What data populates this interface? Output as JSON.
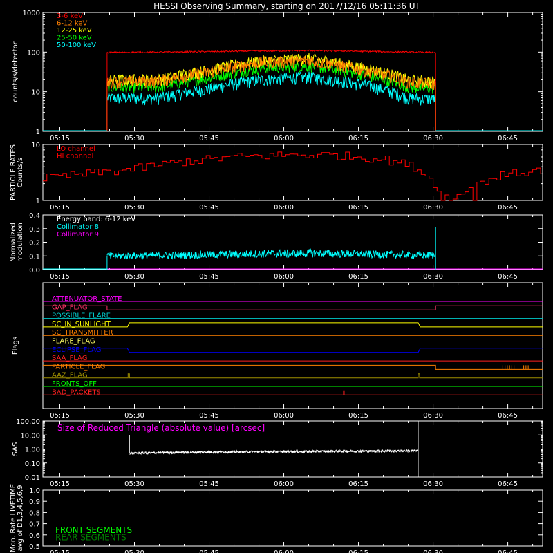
{
  "title": "HESSI Observing Summary, starting on 2017/12/16 05:11:36 UT",
  "colors": {
    "background": "#000000",
    "white": "#ffffff",
    "red": "#ff0000",
    "orange": "#ff7f00",
    "yellow": "#ffff00",
    "green": "#00ff00",
    "cyan": "#00ffff",
    "magenta": "#ff00ff",
    "blue": "#0000ff",
    "darkgreen": "#228b22",
    "olive": "#a09000",
    "salmon": "#ff4040"
  },
  "time_axis": {
    "tick_labels": [
      "05:15",
      "05:30",
      "05:45",
      "06:00",
      "06:15",
      "06:30",
      "06:45"
    ],
    "start": "05:11:36",
    "end": "06:52"
  },
  "chart_data": [
    {
      "id": "count-rates",
      "type": "line",
      "ylabel": "counts/s/detector",
      "y_scale": "log",
      "ylim": [
        1,
        1000
      ],
      "y_tick_labels": [
        "1",
        "10",
        "100",
        "1000"
      ],
      "x_range": [
        "05:24:30",
        "06:30:30"
      ],
      "series": [
        {
          "name": "3-6 keV",
          "color": "#ff0000",
          "x": [
            "05:24:30",
            "05:35",
            "05:45",
            "05:55",
            "06:05",
            "06:15",
            "06:25",
            "06:30:30"
          ],
          "values": [
            98,
            100,
            103,
            107,
            109,
            105,
            100,
            98
          ]
        },
        {
          "name": "6-12 keV",
          "color": "#ff8000",
          "x": [
            "05:24:30",
            "05:35",
            "05:45",
            "05:55",
            "06:05",
            "06:15",
            "06:25",
            "06:30:30"
          ],
          "values": [
            18,
            19,
            32,
            55,
            62,
            38,
            18,
            16
          ]
        },
        {
          "name": "12-25 keV",
          "color": "#ffff00",
          "x": [
            "05:24:30",
            "05:35",
            "05:45",
            "05:55",
            "06:05",
            "06:15",
            "06:25",
            "06:30:30"
          ],
          "values": [
            20,
            21,
            35,
            60,
            70,
            42,
            20,
            18
          ]
        },
        {
          "name": "25-50 keV",
          "color": "#00ff00",
          "x": [
            "05:24:30",
            "05:35",
            "05:45",
            "05:55",
            "06:05",
            "06:15",
            "06:25",
            "06:30:30"
          ],
          "values": [
            13,
            13,
            22,
            38,
            45,
            28,
            13,
            12
          ]
        },
        {
          "name": "50-100 keV",
          "color": "#00ffff",
          "x": [
            "05:24:30",
            "05:35",
            "05:45",
            "05:55",
            "06:05",
            "06:15",
            "06:25",
            "06:30:30"
          ],
          "values": [
            7,
            7,
            12,
            20,
            24,
            16,
            7,
            6.5
          ]
        }
      ]
    },
    {
      "id": "particle-rates",
      "type": "line",
      "ylabel": [
        "PARTICLE RATES",
        "Counts/s"
      ],
      "y_scale": "log",
      "ylim": [
        1,
        10
      ],
      "y_tick_labels": [
        "1",
        "10"
      ],
      "series": [
        {
          "name": "LO channel",
          "color": "#ff0000",
          "x": [
            "05:11:36"
          ],
          "values": [
            3
          ]
        },
        {
          "name": "HI channel",
          "color": "#ff0000",
          "x": [
            "05:11:36",
            "05:20",
            "05:28",
            "05:40",
            "05:50",
            "06:00",
            "06:10",
            "06:20",
            "06:26",
            "06:30",
            "06:33",
            "06:38",
            "06:45",
            "06:52"
          ],
          "values": [
            2.5,
            3,
            3.5,
            5,
            6,
            6.5,
            6.5,
            5.5,
            4,
            2,
            1,
            2,
            3,
            3.5
          ]
        }
      ]
    },
    {
      "id": "modulation",
      "type": "line",
      "ylabel": [
        "Normalized",
        "modulation"
      ],
      "ylim": [
        0,
        0.4
      ],
      "y_tick_labels": [
        "0.0",
        "0.1",
        "0.2",
        "0.3",
        "0.4"
      ],
      "annotation": "Energy band: 6-12 keV",
      "series": [
        {
          "name": "Collimator 8",
          "color": "#00ffff",
          "x": [
            "05:24:30",
            "05:40",
            "05:55",
            "06:05",
            "06:20",
            "06:30:30"
          ],
          "values": [
            0.1,
            0.105,
            0.115,
            0.12,
            0.11,
            0.105
          ]
        },
        {
          "name": "Collimator 9",
          "color": "#ff00ff",
          "x": [
            "05:11:36",
            "06:52"
          ],
          "values": [
            0,
            0
          ]
        }
      ]
    },
    {
      "id": "flags",
      "type": "line",
      "ylabel": "Flags",
      "flags": [
        {
          "name": "ATTENUATOR_STATE",
          "color": "#ff00ff"
        },
        {
          "name": "GAP_FLAG",
          "color": "#ff3366"
        },
        {
          "name": "POSSIBLE_FLARE",
          "color": "#00cccc"
        },
        {
          "name": "SC_IN_SUNLIGHT",
          "color": "#ffff00"
        },
        {
          "name": "SC_TRANSMITTER",
          "color": "#ff8000"
        },
        {
          "name": "FLARE_FLAG",
          "color": "#ffff66"
        },
        {
          "name": "ECLIPSE_FLAG",
          "color": "#0000ff"
        },
        {
          "name": "SAA_FLAG",
          "color": "#ff2020"
        },
        {
          "name": "PARTICLE_FLAG",
          "color": "#ff8000"
        },
        {
          "name": "AAZ_FLAG",
          "color": "#a09000"
        },
        {
          "name": "FRONTS_OFF",
          "color": "#00ff00"
        },
        {
          "name": "BAD_PACKETS",
          "color": "#ff2020"
        }
      ]
    },
    {
      "id": "sas",
      "type": "line",
      "ylabel": "SAS",
      "y_scale": "log",
      "ylim": [
        0.01,
        100
      ],
      "y_tick_labels": [
        "0.01",
        "0.10",
        "1.00",
        "10.00",
        "100.00"
      ],
      "annotation": "Size of Reduced Triangle (absolute value) [arcsec]",
      "series": [
        {
          "name": "",
          "color": "#ffffff",
          "x": [
            "05:29",
            "05:45",
            "06:00",
            "06:15",
            "06:27"
          ],
          "values": [
            0.5,
            0.6,
            0.65,
            0.7,
            0.75
          ]
        }
      ]
    },
    {
      "id": "livetime",
      "type": "line",
      "ylabel": [
        "Mon. Rate LIVETIME",
        "avg of D1,3,4,5,6,9"
      ],
      "ylim": [
        0.5,
        1.0
      ],
      "y_tick_labels": [
        "0.5",
        "0.6",
        "0.7",
        "0.8",
        "0.9",
        "1.0"
      ],
      "series": [
        {
          "name": "FRONT SEGMENTS",
          "color": "#00ff00",
          "x": [],
          "values": []
        },
        {
          "name": "REAR SEGMENTS",
          "color": "#008000",
          "x": [],
          "values": []
        }
      ]
    }
  ]
}
